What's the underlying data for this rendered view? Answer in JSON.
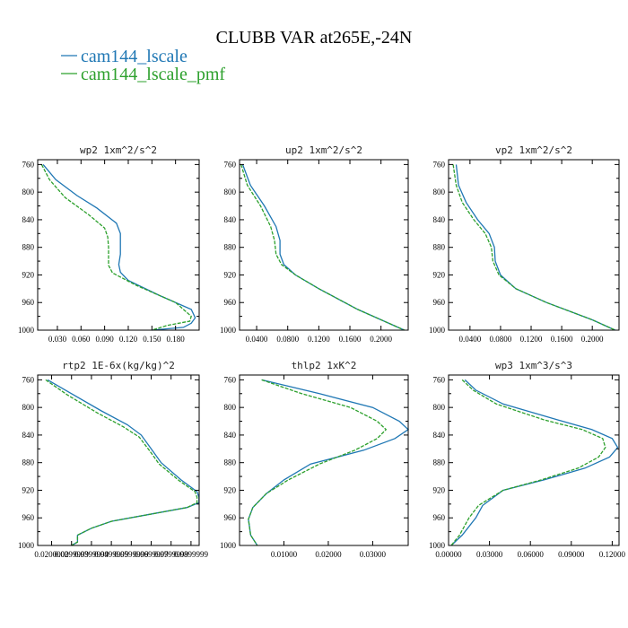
{
  "title": "CLUBB VAR at265E,-24N",
  "legend": [
    {
      "label": "cam144_lscale",
      "color": "#1f77b4",
      "dash": ""
    },
    {
      "label": "cam144_lscale_pmf",
      "color": "#2ca02c",
      "dash": "4,1.5"
    }
  ],
  "chart_data": [
    {
      "type": "line",
      "title": "wp2  1xm^2/s^2",
      "xlim": [
        0.005,
        0.21
      ],
      "ylim": [
        753,
        1000
      ],
      "yticks": [
        760,
        800,
        840,
        880,
        920,
        960,
        1000
      ],
      "xticks": [
        0.03,
        0.06,
        0.09,
        0.12,
        0.15,
        0.18
      ],
      "xtick_labels": [
        "0.030",
        "0.060",
        "0.090",
        "0.120",
        "0.150",
        "0.180"
      ],
      "series": [
        {
          "name": "cam144_lscale",
          "x": [
            0.012,
            0.028,
            0.055,
            0.08,
            0.105,
            0.11,
            0.11,
            0.11,
            0.108,
            0.11,
            0.12,
            0.16,
            0.2,
            0.205,
            0.2,
            0.19,
            0.15
          ],
          "y": [
            760,
            782,
            805,
            823,
            845,
            860,
            873,
            890,
            905,
            916,
            928,
            950,
            970,
            982,
            990,
            996,
            1000
          ]
        },
        {
          "name": "cam144_lscale_pmf",
          "x": [
            0.01,
            0.02,
            0.04,
            0.07,
            0.09,
            0.094,
            0.095,
            0.095,
            0.095,
            0.1,
            0.13,
            0.18,
            0.2,
            0.198,
            0.17,
            0.15
          ],
          "y": [
            760,
            782,
            808,
            833,
            852,
            865,
            880,
            895,
            906,
            917,
            935,
            960,
            980,
            987,
            993,
            1000
          ]
        }
      ]
    },
    {
      "type": "line",
      "title": "up2  1xm^2/s^2",
      "xlim": [
        0.018,
        0.235
      ],
      "ylim": [
        753,
        1000
      ],
      "yticks": [
        760,
        800,
        840,
        880,
        920,
        960,
        1000
      ],
      "xticks": [
        0.04,
        0.08,
        0.12,
        0.16,
        0.2
      ],
      "xtick_labels": [
        "0.0400",
        "0.0800",
        "0.1200",
        "0.1600",
        "0.2000"
      ],
      "series": [
        {
          "name": "cam144_lscale",
          "x": [
            0.022,
            0.032,
            0.05,
            0.065,
            0.07,
            0.07,
            0.075,
            0.09,
            0.12,
            0.17,
            0.23
          ],
          "y": [
            760,
            790,
            820,
            850,
            870,
            890,
            905,
            920,
            940,
            970,
            1000
          ]
        },
        {
          "name": "cam144_lscale_pmf",
          "x": [
            0.02,
            0.028,
            0.045,
            0.058,
            0.063,
            0.065,
            0.072,
            0.09,
            0.12,
            0.17,
            0.23
          ],
          "y": [
            760,
            790,
            820,
            850,
            870,
            890,
            905,
            920,
            940,
            970,
            1000
          ]
        }
      ]
    },
    {
      "type": "line",
      "title": "vp2  1xm^2/s^2",
      "xlim": [
        0.012,
        0.235
      ],
      "ylim": [
        753,
        1000
      ],
      "yticks": [
        760,
        800,
        840,
        880,
        920,
        960,
        1000
      ],
      "xticks": [
        0.04,
        0.08,
        0.12,
        0.16,
        0.2
      ],
      "xtick_labels": [
        "0.0400",
        "0.0800",
        "0.1200",
        "0.1600",
        "0.2000"
      ],
      "series": [
        {
          "name": "cam144_lscale",
          "x": [
            0.022,
            0.025,
            0.035,
            0.05,
            0.065,
            0.072,
            0.073,
            0.08,
            0.1,
            0.14,
            0.2,
            0.23
          ],
          "y": [
            760,
            790,
            815,
            840,
            860,
            880,
            900,
            920,
            940,
            960,
            985,
            1000
          ]
        },
        {
          "name": "cam144_lscale_pmf",
          "x": [
            0.018,
            0.022,
            0.03,
            0.045,
            0.06,
            0.068,
            0.07,
            0.078,
            0.1,
            0.14,
            0.2,
            0.23
          ],
          "y": [
            760,
            790,
            815,
            840,
            860,
            880,
            900,
            920,
            940,
            960,
            985,
            1000
          ]
        }
      ]
    },
    {
      "type": "line",
      "title": "rtp2  1E-6x(kg/kg)^2",
      "xlim": [
        0.013,
        0.0941
      ],
      "ylim": [
        753,
        1000
      ],
      "yticks": [
        760,
        800,
        840,
        880,
        920,
        960,
        1000
      ],
      "xticks": [
        0.02,
        0.03,
        0.04,
        0.05,
        0.06,
        0.07,
        0.08,
        0.09
      ],
      "xtick_labels": [
        "0.0200000",
        "0.0299999",
        "0.0399999",
        "0.0499999",
        "0.0599999",
        "0.0699999",
        "0.0799999",
        "0.0899999"
      ],
      "series": [
        {
          "name": "cam144_lscale",
          "x": [
            0.018,
            0.03,
            0.045,
            0.058,
            0.065,
            0.07,
            0.075,
            0.085,
            0.093,
            0.094,
            0.094,
            0.088,
            0.05,
            0.04,
            0.033,
            0.033,
            0.03
          ],
          "y": [
            760,
            780,
            805,
            825,
            840,
            860,
            880,
            905,
            922,
            930,
            938,
            945,
            965,
            975,
            985,
            995,
            1000
          ]
        },
        {
          "name": "cam144_lscale_pmf",
          "x": [
            0.017,
            0.028,
            0.043,
            0.056,
            0.064,
            0.069,
            0.074,
            0.084,
            0.092,
            0.093,
            0.093,
            0.088,
            0.05,
            0.04,
            0.033,
            0.033,
            0.03
          ],
          "y": [
            760,
            782,
            808,
            828,
            843,
            862,
            882,
            906,
            922,
            930,
            938,
            945,
            965,
            975,
            985,
            995,
            1000
          ]
        }
      ]
    },
    {
      "type": "line",
      "title": "thlp2  1xK^2",
      "xlim": [
        0.0,
        0.038
      ],
      "ylim": [
        753,
        1000
      ],
      "yticks": [
        760,
        800,
        840,
        880,
        920,
        960,
        1000
      ],
      "xticks": [
        0.01,
        0.02,
        0.03
      ],
      "xtick_labels": [
        "0.01000",
        "0.02000",
        "0.03000"
      ],
      "series": [
        {
          "name": "cam144_lscale",
          "x": [
            0.005,
            0.018,
            0.03,
            0.036,
            0.038,
            0.035,
            0.028,
            0.016,
            0.01,
            0.006,
            0.003,
            0.002,
            0.0025,
            0.004
          ],
          "y": [
            760,
            780,
            800,
            820,
            832,
            845,
            862,
            882,
            905,
            925,
            945,
            962,
            985,
            1000
          ]
        },
        {
          "name": "cam144_lscale_pmf",
          "x": [
            0.005,
            0.014,
            0.025,
            0.031,
            0.033,
            0.031,
            0.026,
            0.018,
            0.011,
            0.006,
            0.003,
            0.002,
            0.0025,
            0.004
          ],
          "y": [
            760,
            780,
            800,
            820,
            832,
            845,
            862,
            882,
            905,
            925,
            945,
            962,
            985,
            1000
          ]
        }
      ]
    },
    {
      "type": "line",
      "title": "wp3  1xm^3/s^3",
      "xlim": [
        0.0,
        0.125
      ],
      "ylim": [
        753,
        1000
      ],
      "yticks": [
        760,
        800,
        840,
        880,
        920,
        960,
        1000
      ],
      "xticks": [
        0.0,
        0.03,
        0.06,
        0.09,
        0.12
      ],
      "xtick_labels": [
        "0.00000",
        "0.03000",
        "0.06000",
        "0.09000",
        "0.12000"
      ],
      "series": [
        {
          "name": "cam144_lscale",
          "x": [
            0.012,
            0.02,
            0.04,
            0.08,
            0.105,
            0.12,
            0.124,
            0.118,
            0.1,
            0.07,
            0.04,
            0.025,
            0.02,
            0.01,
            0.002
          ],
          "y": [
            760,
            775,
            795,
            818,
            832,
            845,
            858,
            872,
            888,
            905,
            920,
            942,
            960,
            985,
            1000
          ]
        },
        {
          "name": "cam144_lscale_pmf",
          "x": [
            0.01,
            0.018,
            0.035,
            0.07,
            0.098,
            0.113,
            0.115,
            0.11,
            0.095,
            0.068,
            0.04,
            0.022,
            0.015,
            0.008,
            0.002
          ],
          "y": [
            760,
            775,
            795,
            818,
            832,
            845,
            858,
            872,
            888,
            905,
            920,
            942,
            960,
            985,
            1000
          ]
        }
      ]
    }
  ]
}
